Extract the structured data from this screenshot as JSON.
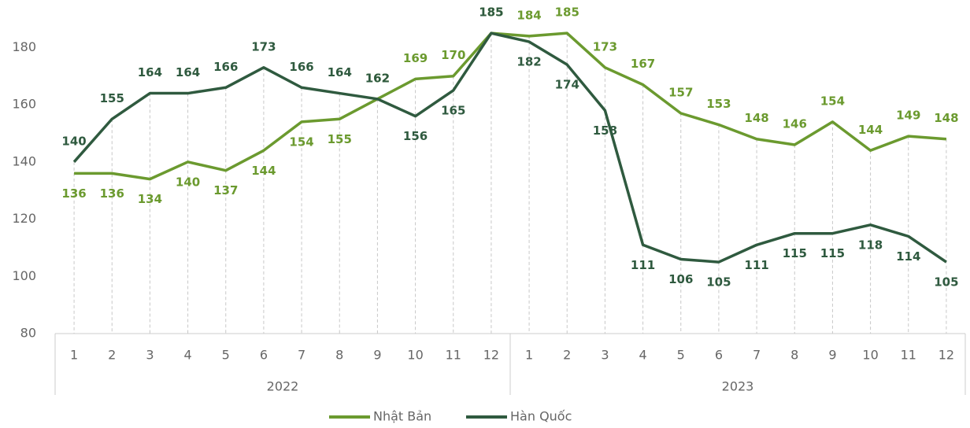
{
  "chart_data": {
    "type": "line",
    "categories": [
      "1",
      "2",
      "3",
      "4",
      "5",
      "6",
      "7",
      "8",
      "9",
      "10",
      "11",
      "12",
      "1",
      "2",
      "3",
      "4",
      "5",
      "6",
      "7",
      "8",
      "9",
      "10",
      "11",
      "12"
    ],
    "category_groups": [
      "2022",
      "2023"
    ],
    "series": [
      {
        "name": "Nhật Bản",
        "color": "#6b9a2f",
        "values": [
          136,
          136,
          134,
          140,
          137,
          144,
          154,
          155,
          162,
          169,
          170,
          185,
          184,
          185,
          173,
          167,
          157,
          153,
          148,
          146,
          154,
          144,
          149,
          148
        ]
      },
      {
        "name": "Hàn Quốc",
        "color": "#2f5a3f",
        "values": [
          140,
          155,
          164,
          164,
          166,
          173,
          166,
          164,
          162,
          156,
          165,
          185,
          182,
          174,
          158,
          111,
          106,
          105,
          111,
          115,
          115,
          118,
          114,
          105
        ]
      }
    ],
    "ylim": [
      80,
      190
    ],
    "yticks": [
      80,
      100,
      120,
      140,
      160,
      180
    ],
    "legend": "bottom"
  }
}
